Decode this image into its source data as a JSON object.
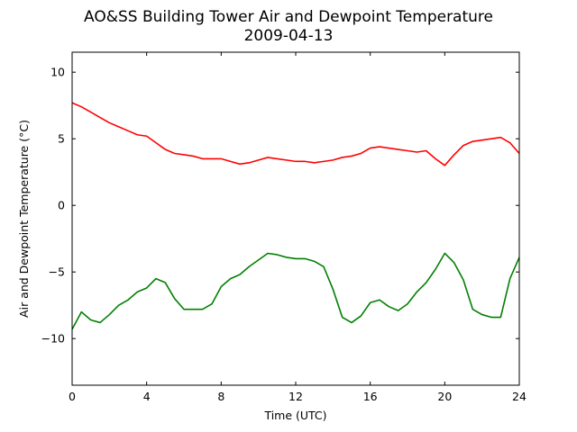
{
  "chart_data": {
    "type": "line",
    "title": "AO&SS Building Tower Air and Dewpoint Temperature",
    "subtitle": "2009-04-13",
    "xlabel": "Time (UTC)",
    "ylabel": "Air and Dewpoint Temperature (°C)",
    "xlim": [
      0,
      24
    ],
    "ylim": [
      -13.5,
      11.5
    ],
    "xticks": [
      0,
      4,
      8,
      12,
      16,
      20,
      24
    ],
    "yticks": [
      -10,
      -5,
      0,
      5,
      10
    ],
    "grid": false,
    "legend": "none",
    "series": [
      {
        "color": "#ff0000",
        "x": [
          0,
          0.5,
          1,
          1.5,
          2,
          2.5,
          3,
          3.5,
          4,
          4.5,
          5,
          5.5,
          6,
          6.5,
          7,
          7.5,
          8,
          8.5,
          9,
          9.5,
          10,
          10.5,
          11,
          11.5,
          12,
          12.5,
          13,
          13.5,
          14,
          14.5,
          15,
          15.5,
          16,
          16.5,
          17,
          17.5,
          18,
          18.5,
          19,
          19.5,
          20,
          20.5,
          21,
          21.5,
          22,
          22.5,
          23,
          23.5,
          24
        ],
        "y": [
          7.7,
          7.4,
          7.0,
          6.6,
          6.2,
          5.9,
          5.6,
          5.3,
          5.2,
          4.7,
          4.2,
          3.9,
          3.8,
          3.7,
          3.5,
          3.5,
          3.5,
          3.3,
          3.1,
          3.2,
          3.4,
          3.6,
          3.5,
          3.4,
          3.3,
          3.3,
          3.2,
          3.3,
          3.4,
          3.6,
          3.7,
          3.9,
          4.3,
          4.4,
          4.3,
          4.2,
          4.1,
          4.0,
          4.1,
          3.5,
          3.0,
          3.8,
          4.5,
          4.8,
          4.9,
          5.0,
          5.1,
          4.7,
          3.9
        ]
      },
      {
        "color": "#008000",
        "x": [
          0,
          0.5,
          1,
          1.5,
          2,
          2.5,
          3,
          3.5,
          4,
          4.5,
          5,
          5.5,
          6,
          6.5,
          7,
          7.5,
          8,
          8.5,
          9,
          9.5,
          10,
          10.5,
          11,
          11.5,
          12,
          12.5,
          13,
          13.5,
          14,
          14.5,
          15,
          15.5,
          16,
          16.5,
          17,
          17.5,
          18,
          18.5,
          19,
          19.5,
          20,
          20.5,
          21,
          21.5,
          22,
          22.5,
          23,
          23.5,
          24
        ],
        "y": [
          -9.3,
          -8.0,
          -8.6,
          -8.8,
          -8.2,
          -7.5,
          -7.1,
          -6.5,
          -6.2,
          -5.5,
          -5.8,
          -7.0,
          -7.8,
          -7.8,
          -7.8,
          -7.4,
          -6.1,
          -5.5,
          -5.2,
          -4.6,
          -4.1,
          -3.6,
          -3.7,
          -3.9,
          -4.0,
          -4.0,
          -4.2,
          -4.6,
          -6.3,
          -8.4,
          -8.8,
          -8.3,
          -7.3,
          -7.1,
          -7.6,
          -7.9,
          -7.4,
          -6.5,
          -5.8,
          -4.8,
          -3.6,
          -4.3,
          -5.6,
          -7.8,
          -8.2,
          -8.4,
          -8.4,
          -5.5,
          -3.9
        ]
      }
    ]
  }
}
